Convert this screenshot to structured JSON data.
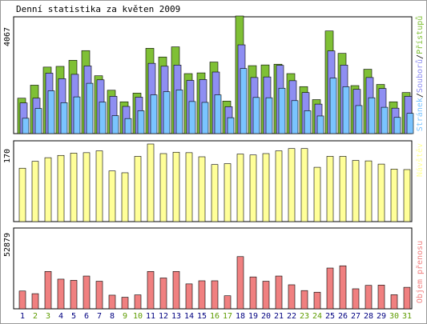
{
  "chart_data": [
    {
      "type": "bar",
      "title": "Denní statistika za květen 2009",
      "ymax_label": "4067",
      "ylim": [
        0,
        4067
      ],
      "legend_placement": "right, vertical",
      "categories": [
        "1",
        "2",
        "3",
        "4",
        "5",
        "6",
        "7",
        "8",
        "9",
        "10",
        "11",
        "12",
        "13",
        "14",
        "15",
        "16",
        "17",
        "18",
        "19",
        "20",
        "21",
        "22",
        "23",
        "24",
        "25",
        "26",
        "27",
        "28",
        "29",
        "30",
        "31"
      ],
      "weekend_days": [
        "2",
        "3",
        "9",
        "10",
        "16",
        "17",
        "23",
        "24",
        "30",
        "31"
      ],
      "colors": {
        "weekday_label": "#000080",
        "weekend_label": "#5e9c00"
      },
      "series": [
        {
          "name": "Přístupů",
          "color": "#7fc035",
          "values": [
            1225,
            1675,
            2300,
            2325,
            2535,
            2870,
            2000,
            1500,
            1100,
            1400,
            2950,
            2650,
            3000,
            2075,
            2100,
            2475,
            1125,
            4067,
            2350,
            2375,
            2400,
            2075,
            1625,
            1175,
            3550,
            2775,
            1660,
            2225,
            1700,
            1100,
            1420
          ]
        },
        {
          "name": "Souborů",
          "color": "#8e8ef2",
          "values": [
            1060,
            1225,
            2090,
            1900,
            2050,
            2340,
            1860,
            1290,
            940,
            1260,
            2430,
            2330,
            2370,
            1840,
            1870,
            2130,
            930,
            3070,
            1940,
            1960,
            2360,
            1830,
            1420,
            1020,
            2860,
            2370,
            1530,
            1940,
            1560,
            880,
            1290
          ]
        },
        {
          "name": "Stránek",
          "color": "#7ac4ff",
          "values": [
            530,
            870,
            1480,
            1070,
            1270,
            1740,
            1090,
            620,
            520,
            790,
            1340,
            1450,
            1510,
            1110,
            1080,
            1340,
            550,
            2250,
            1250,
            1240,
            1570,
            1140,
            790,
            610,
            1920,
            1620,
            970,
            1240,
            910,
            560,
            700
          ]
        }
      ]
    },
    {
      "type": "bar",
      "ymax_label": "170",
      "ylim": [
        0,
        170
      ],
      "categories": [
        "1",
        "2",
        "3",
        "4",
        "5",
        "6",
        "7",
        "8",
        "9",
        "10",
        "11",
        "12",
        "13",
        "14",
        "15",
        "16",
        "17",
        "18",
        "19",
        "20",
        "21",
        "22",
        "23",
        "24",
        "25",
        "26",
        "27",
        "28",
        "29",
        "30",
        "31"
      ],
      "series": [
        {
          "name": "Návštěv",
          "color": "#ffff99",
          "values": [
            117,
            132,
            140,
            145,
            150,
            151,
            155,
            111,
            107,
            143,
            170,
            149,
            152,
            151,
            142,
            125,
            127,
            148,
            146,
            149,
            155,
            160,
            160,
            119,
            143,
            143,
            134,
            133,
            126,
            115,
            114
          ]
        }
      ]
    },
    {
      "type": "bar",
      "ymax_label": "52879",
      "ylim": [
        0,
        52879
      ],
      "categories": [
        "1",
        "2",
        "3",
        "4",
        "5",
        "6",
        "7",
        "8",
        "9",
        "10",
        "11",
        "12",
        "13",
        "14",
        "15",
        "16",
        "17",
        "18",
        "19",
        "20",
        "21",
        "22",
        "23",
        "24",
        "25",
        "26",
        "27",
        "28",
        "29",
        "30",
        "31"
      ],
      "series": [
        {
          "name": "Objem přenosu",
          "color": "#f08080",
          "values": [
            12000,
            10200,
            25200,
            20000,
            19200,
            22100,
            18600,
            9200,
            7800,
            9400,
            25200,
            20800,
            25200,
            16800,
            18900,
            18900,
            8800,
            35200,
            21500,
            18600,
            22100,
            16200,
            12300,
            11200,
            27500,
            29000,
            13500,
            15800,
            16000,
            9500,
            14500
          ]
        }
      ]
    }
  ]
}
